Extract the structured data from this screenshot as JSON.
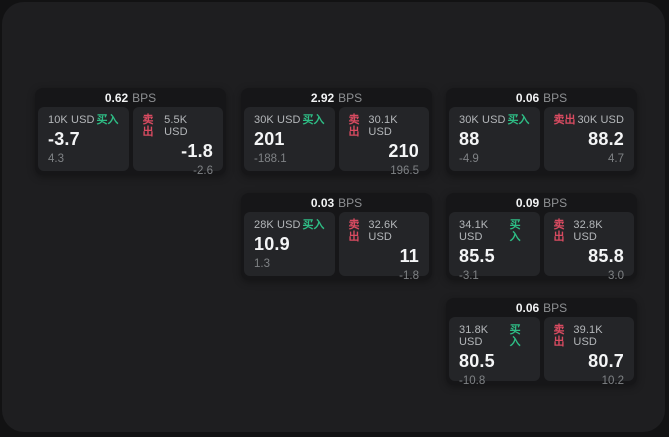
{
  "labels": {
    "bps_suffix": "BPS",
    "buy": "买入",
    "sell": "卖出"
  },
  "colors": {
    "buy_green": "#2ebd85",
    "sell_red": "#d94b61",
    "window_bg": "#1e1e20",
    "card_bg": "#161618",
    "panel_bg": "#242528"
  },
  "cards": [
    {
      "bps": "0.62",
      "buy": {
        "amount": "10K USD",
        "value": "-3.7",
        "change": "4.3"
      },
      "sell": {
        "amount": "5.5K USD",
        "value": "-1.8",
        "change": "-2.6"
      }
    },
    {
      "bps": "2.92",
      "buy": {
        "amount": "30K USD",
        "value": "201",
        "change": "-188.1"
      },
      "sell": {
        "amount": "30.1K USD",
        "value": "210",
        "change": "196.5"
      }
    },
    {
      "bps": "0.06",
      "buy": {
        "amount": "30K USD",
        "value": "88",
        "change": "-4.9"
      },
      "sell": {
        "amount": "30K USD",
        "value": "88.2",
        "change": "4.7"
      }
    },
    {
      "bps": "0.03",
      "buy": {
        "amount": "28K USD",
        "value": "10.9",
        "change": "1.3"
      },
      "sell": {
        "amount": "32.6K USD",
        "value": "11",
        "change": "-1.8"
      }
    },
    {
      "bps": "0.09",
      "buy": {
        "amount": "34.1K USD",
        "value": "85.5",
        "change": "-3.1"
      },
      "sell": {
        "amount": "32.8K USD",
        "value": "85.8",
        "change": "3.0"
      }
    },
    {
      "bps": "0.06",
      "buy": {
        "amount": "31.8K USD",
        "value": "80.5",
        "change": "-10.8"
      },
      "sell": {
        "amount": "39.1K USD",
        "value": "80.7",
        "change": "10.2"
      }
    }
  ]
}
